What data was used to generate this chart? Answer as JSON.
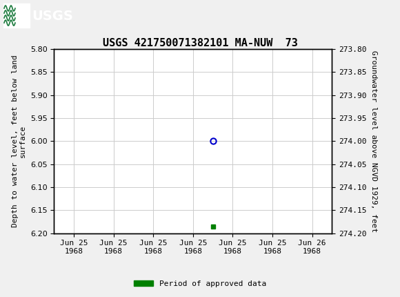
{
  "title": "USGS 421750071382101 MA-NUW  73",
  "header_color": "#1a7a3c",
  "bg_color": "#f0f0f0",
  "plot_bg_color": "#ffffff",
  "grid_color": "#cccccc",
  "left_ylabel": "Depth to water level, feet below land\nsurface",
  "right_ylabel": "Groundwater level above NGVD 1929, feet",
  "ylim_left": [
    5.8,
    6.2
  ],
  "ylim_right_top": 274.2,
  "ylim_right_bottom": 273.8,
  "yticks_left": [
    5.8,
    5.85,
    5.9,
    5.95,
    6.0,
    6.05,
    6.1,
    6.15,
    6.2
  ],
  "yticks_right": [
    274.2,
    274.15,
    274.1,
    274.05,
    274.0,
    273.95,
    273.9,
    273.85,
    273.8
  ],
  "ytick_right_labels": [
    "274.20",
    "274.15",
    "274.10",
    "274.05",
    "274.00",
    "273.95",
    "273.90",
    "273.85",
    "273.80"
  ],
  "data_point_x": 3.5,
  "data_point_y": 6.0,
  "data_point_color": "#0000cc",
  "green_marker_x": 3.5,
  "green_marker_y": 6.185,
  "marker_color": "#008000",
  "legend_label": "Period of approved data",
  "xtick_labels": [
    "Jun 25\n1968",
    "Jun 25\n1968",
    "Jun 25\n1968",
    "Jun 25\n1968",
    "Jun 25\n1968",
    "Jun 25\n1968",
    "Jun 26\n1968"
  ],
  "xtick_positions": [
    0,
    1,
    2,
    3,
    4,
    5,
    6
  ],
  "xlim": [
    -0.5,
    6.5
  ],
  "font_family": "DejaVu Sans Mono",
  "title_fontsize": 11,
  "axis_label_fontsize": 8,
  "tick_fontsize": 8,
  "header_text": "USGS",
  "header_fontsize": 14
}
